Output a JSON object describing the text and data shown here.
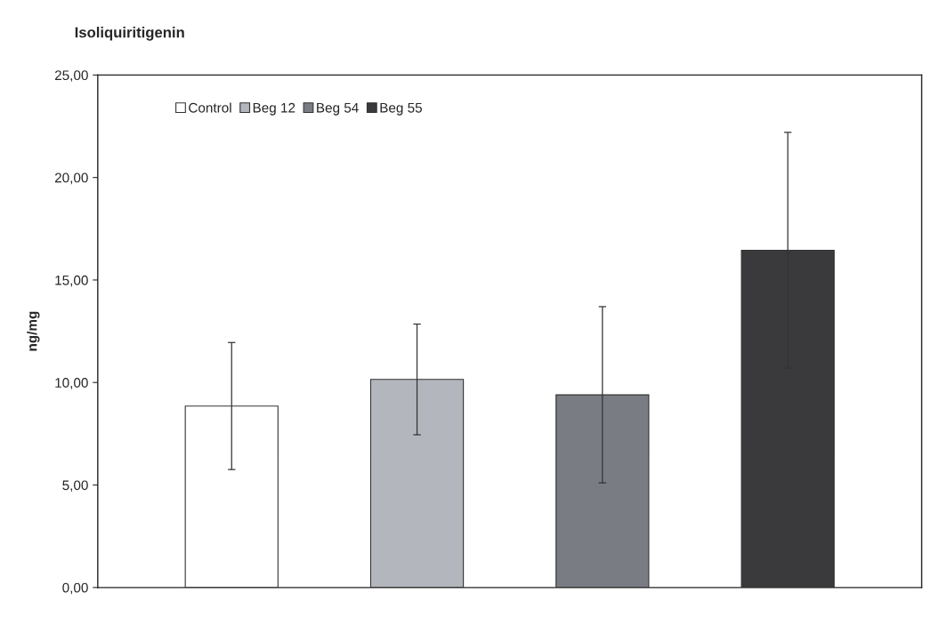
{
  "chart_data": {
    "type": "bar",
    "title": "Isoliquiritigenin",
    "ylabel": "ng/mg",
    "categories": [
      null
    ],
    "series": [
      {
        "name": "Control",
        "color": "#ffffff",
        "values": [
          8.85
        ],
        "errors": [
          3.1
        ]
      },
      {
        "name": "Beg 12",
        "color": "#b4b6bd",
        "values": [
          10.15
        ],
        "errors": [
          2.7
        ]
      },
      {
        "name": "Beg 54",
        "color": "#7a7c84",
        "values": [
          9.4
        ],
        "errors": [
          4.3
        ]
      },
      {
        "name": "Beg 55",
        "color": "#3a3a3c",
        "values": [
          16.45
        ],
        "errors": [
          5.75
        ]
      }
    ],
    "ylim": [
      0,
      25
    ],
    "yticks": [
      {
        "value": 0,
        "label": "0,00"
      },
      {
        "value": 5,
        "label": "5,00"
      },
      {
        "value": 10,
        "label": "10,00"
      },
      {
        "value": 15,
        "label": "15,00"
      },
      {
        "value": 20,
        "label": "20,00"
      },
      {
        "value": 25,
        "label": "25,00"
      }
    ],
    "legend": "top left",
    "grid": false
  }
}
